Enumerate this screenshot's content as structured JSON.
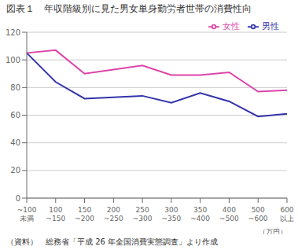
{
  "chart_data": {
    "type": "line",
    "title": "図表１　年収階級別に見た男女単身勤労者世帯の消費性向",
    "categories": [
      "~100\n未満",
      "100\n~150",
      "150\n~200",
      "200\n~250",
      "250\n~300",
      "300\n~350",
      "350\n~400",
      "400\n~500",
      "500\n~600",
      "600\n以上"
    ],
    "x_label": "（万円）",
    "caption": "（資料）　総務省「平成 26 年全国消費実態調査」より作成",
    "series": [
      {
        "name": "男性",
        "color": "#3333aa",
        "values": [
          105,
          84,
          72,
          73,
          74,
          69,
          76,
          70,
          59,
          61
        ]
      },
      {
        "name": "女性",
        "color": "#dd44aa",
        "values": [
          105,
          107,
          90,
          93,
          96,
          89,
          89,
          91,
          77,
          78
        ]
      }
    ],
    "ylim": [
      0,
      120
    ],
    "yticks": [
      0,
      20,
      40,
      60,
      80,
      100,
      120
    ],
    "grid": true,
    "legend": "upper right"
  }
}
